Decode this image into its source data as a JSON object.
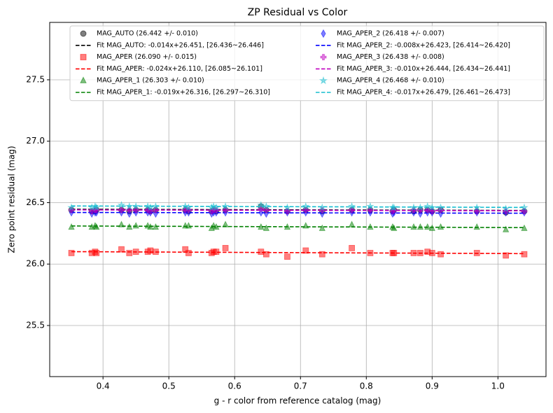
{
  "chart_data": {
    "type": "scatter",
    "title": "ZP Residual vs Color",
    "x_label": "g - r color from reference catalog (mag)",
    "y_label": "Zero point residual (mag)",
    "xlim": [
      0.319,
      1.073
    ],
    "ylim": [
      25.084,
      27.967
    ],
    "xticks": [
      0.4,
      0.5,
      0.6,
      0.7,
      0.8,
      0.9,
      {
        "value": 1,
        "label": "1.0"
      }
    ],
    "yticks": [
      25.5,
      {
        "value": 26,
        "label": "26.0"
      },
      26.5,
      {
        "value": 27,
        "label": "27.0"
      },
      27.5
    ],
    "grid": true,
    "legend": "upper center",
    "x": [
      0.352,
      0.383,
      0.388,
      0.39,
      0.428,
      0.44,
      0.45,
      0.468,
      0.472,
      0.48,
      0.525,
      0.53,
      0.565,
      0.568,
      0.572,
      0.586,
      0.64,
      0.648,
      0.68,
      0.708,
      0.733,
      0.778,
      0.806,
      0.84,
      0.842,
      0.872,
      0.882,
      0.893,
      0.9,
      0.913,
      0.968,
      1.012,
      1.04
    ],
    "series": [
      {
        "name": "MAG_AUTO (26.442 +/- 0.010)",
        "type": "scatter",
        "marker": "circle",
        "color": "#000000",
        "values": [
          26.44,
          26.43,
          26.43,
          26.44,
          26.44,
          26.43,
          26.44,
          26.44,
          26.43,
          26.44,
          26.44,
          26.43,
          26.43,
          26.44,
          26.43,
          26.44,
          26.47,
          26.44,
          26.43,
          26.44,
          26.43,
          26.44,
          26.44,
          26.43,
          26.44,
          26.43,
          26.44,
          26.44,
          26.43,
          26.44,
          26.43,
          26.42,
          26.43
        ]
      },
      {
        "name": "Fit MAG_AUTO: -0.014x+26.451, [26.436~26.446]",
        "type": "line",
        "color": "#000000",
        "x": [
          0.352,
          1.04
        ],
        "values": [
          26.446,
          26.436
        ]
      },
      {
        "name": "MAG_APER (26.090 +/- 0.015)",
        "type": "scatter",
        "marker": "square",
        "color": "#ff0000",
        "values": [
          26.09,
          26.09,
          26.1,
          26.09,
          26.12,
          26.09,
          26.1,
          26.1,
          26.11,
          26.1,
          26.12,
          26.09,
          26.09,
          26.1,
          26.1,
          26.13,
          26.1,
          26.08,
          26.06,
          26.11,
          26.08,
          26.13,
          26.09,
          26.09,
          26.09,
          26.09,
          26.09,
          26.1,
          26.09,
          26.08,
          26.09,
          26.07,
          26.08
        ]
      },
      {
        "name": "Fit MAG_APER: -0.024x+26.110, [26.085~26.101]",
        "type": "line",
        "color": "#ff0000",
        "x": [
          0.352,
          1.04
        ],
        "values": [
          26.101,
          26.085
        ]
      },
      {
        "name": "MAG_APER_1 (26.303 +/- 0.010)",
        "type": "scatter",
        "marker": "triangle",
        "color": "#008000",
        "values": [
          26.3,
          26.3,
          26.31,
          26.3,
          26.32,
          26.3,
          26.31,
          26.31,
          26.3,
          26.3,
          26.31,
          26.31,
          26.29,
          26.31,
          26.3,
          26.32,
          26.3,
          26.29,
          26.3,
          26.31,
          26.29,
          26.32,
          26.3,
          26.3,
          26.29,
          26.3,
          26.3,
          26.3,
          26.29,
          26.3,
          26.3,
          26.28,
          26.29
        ]
      },
      {
        "name": "Fit MAG_APER_1: -0.019x+26.316, [26.297~26.310]",
        "type": "line",
        "color": "#008000",
        "x": [
          0.352,
          1.04
        ],
        "values": [
          26.31,
          26.297
        ]
      },
      {
        "name": "MAG_APER_2 (26.418 +/- 0.007)",
        "type": "scatter",
        "marker": "diamond",
        "color": "#0000ff",
        "values": [
          26.42,
          26.41,
          26.42,
          26.42,
          26.42,
          26.41,
          26.42,
          26.42,
          26.42,
          26.41,
          26.42,
          26.42,
          26.41,
          26.42,
          26.42,
          26.42,
          26.42,
          26.41,
          26.42,
          26.42,
          26.41,
          26.42,
          26.42,
          26.41,
          26.42,
          26.42,
          26.41,
          26.42,
          26.42,
          26.41,
          26.42,
          26.42,
          26.42
        ]
      },
      {
        "name": "Fit MAG_APER_2: -0.008x+26.423, [26.414~26.420]",
        "type": "line",
        "color": "#0000ff",
        "x": [
          0.352,
          1.04
        ],
        "values": [
          26.42,
          26.414
        ]
      },
      {
        "name": "MAG_APER_3 (26.438 +/- 0.008)",
        "type": "scatter",
        "marker": "plus",
        "color": "#bf00bf",
        "values": [
          26.44,
          26.43,
          26.44,
          26.44,
          26.44,
          26.44,
          26.44,
          26.44,
          26.43,
          26.44,
          26.44,
          26.44,
          26.43,
          26.44,
          26.44,
          26.44,
          26.45,
          26.44,
          26.43,
          26.44,
          26.44,
          26.44,
          26.44,
          26.43,
          26.44,
          26.44,
          26.44,
          26.44,
          26.43,
          26.44,
          26.43,
          26.43,
          26.43
        ]
      },
      {
        "name": "Fit MAG_APER_3: -0.010x+26.444, [26.434~26.441]",
        "type": "line",
        "color": "#bf00bf",
        "x": [
          0.352,
          1.04
        ],
        "values": [
          26.441,
          26.434
        ]
      },
      {
        "name": "MAG_APER_4 (26.468 +/- 0.010)",
        "type": "scatter",
        "marker": "star",
        "color": "#17becf",
        "values": [
          26.46,
          26.46,
          26.47,
          26.46,
          26.48,
          26.47,
          26.47,
          26.47,
          26.46,
          26.47,
          26.47,
          26.46,
          26.46,
          26.47,
          26.46,
          26.47,
          26.48,
          26.47,
          26.46,
          26.47,
          26.46,
          26.47,
          26.47,
          26.46,
          26.46,
          26.46,
          26.46,
          26.47,
          26.46,
          26.46,
          26.46,
          26.45,
          26.46
        ]
      },
      {
        "name": "Fit MAG_APER_4: -0.017x+26.479, [26.461~26.473]",
        "type": "line",
        "color": "#17becf",
        "x": [
          0.352,
          1.04
        ],
        "values": [
          26.473,
          26.461
        ]
      }
    ]
  }
}
